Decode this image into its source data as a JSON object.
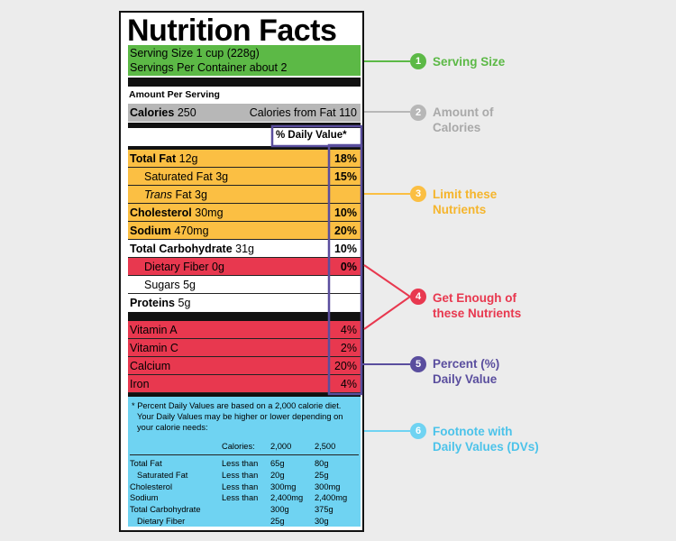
{
  "colors": {
    "green": "#5cb946",
    "gray": "#b7b7b7",
    "yellow": "#fbbf43",
    "red": "#e8384f",
    "purple": "#5a4e9e",
    "blue": "#6fd3f2"
  },
  "label": {
    "title": "Nutrition Facts",
    "serving_size": "Serving Size 1 cup (228g)",
    "servings_per_container": "Servings Per Container about 2",
    "amount_per_serving": "Amount Per Serving",
    "calories_label": "Calories",
    "calories_value": "250",
    "calories_from_fat": "Calories from Fat 110",
    "dv_header": "% Daily Value*",
    "nutrients": [
      {
        "name": "Total Fat",
        "amount": "12g",
        "dv": "18%"
      },
      {
        "name": "Saturated Fat",
        "amount": "3g",
        "dv": "15%"
      },
      {
        "name": "Trans",
        "amount": "Fat 3g",
        "dv": ""
      },
      {
        "name": "Cholesterol",
        "amount": "30mg",
        "dv": "10%"
      },
      {
        "name": "Sodium",
        "amount": "470mg",
        "dv": "20%"
      },
      {
        "name": "Total Carbohydrate",
        "amount": "31g",
        "dv": "10%"
      },
      {
        "name": "Dietary Fiber",
        "amount": "0g",
        "dv": "0%"
      },
      {
        "name": "Sugars",
        "amount": "5g",
        "dv": ""
      },
      {
        "name": "Proteins",
        "amount": "5g",
        "dv": ""
      }
    ],
    "vitamins": [
      {
        "name": "Vitamin A",
        "dv": "4%"
      },
      {
        "name": "Vitamin C",
        "dv": "2%"
      },
      {
        "name": "Calcium",
        "dv": "20%"
      },
      {
        "name": "Iron",
        "dv": "4%"
      }
    ],
    "footnote": {
      "line1": "* Percent Daily Values are based on a 2,000 calorie diet.",
      "line2": "Your Daily Values may be higher or lower depending on",
      "line3": "your calorie needs:",
      "header": [
        "Calories:",
        "2,000",
        "2,500"
      ],
      "rows": [
        [
          "Total Fat",
          "Less than",
          "65g",
          "80g"
        ],
        [
          "Saturated Fat",
          "Less than",
          "20g",
          "25g"
        ],
        [
          "Cholesterol",
          "Less than",
          "300mg",
          "300mg"
        ],
        [
          "Sodium",
          "Less than",
          "2,400mg",
          "2,400mg"
        ],
        [
          "Total Carbohydrate",
          "",
          "300g",
          "375g"
        ],
        [
          "Dietary Fiber",
          "",
          "25g",
          "30g"
        ]
      ]
    }
  },
  "annotations": [
    {
      "number": "1",
      "text1": "Serving Size",
      "text2": ""
    },
    {
      "number": "2",
      "text1": "Amount of",
      "text2": "Calories"
    },
    {
      "number": "3",
      "text1": "Limit these",
      "text2": "Nutrients"
    },
    {
      "number": "4",
      "text1": "Get Enough of",
      "text2": "these Nutrients"
    },
    {
      "number": "5",
      "text1": "Percent (%)",
      "text2": "Daily Value"
    },
    {
      "number": "6",
      "text1": "Footnote with",
      "text2": "Daily Values (DVs)"
    }
  ]
}
